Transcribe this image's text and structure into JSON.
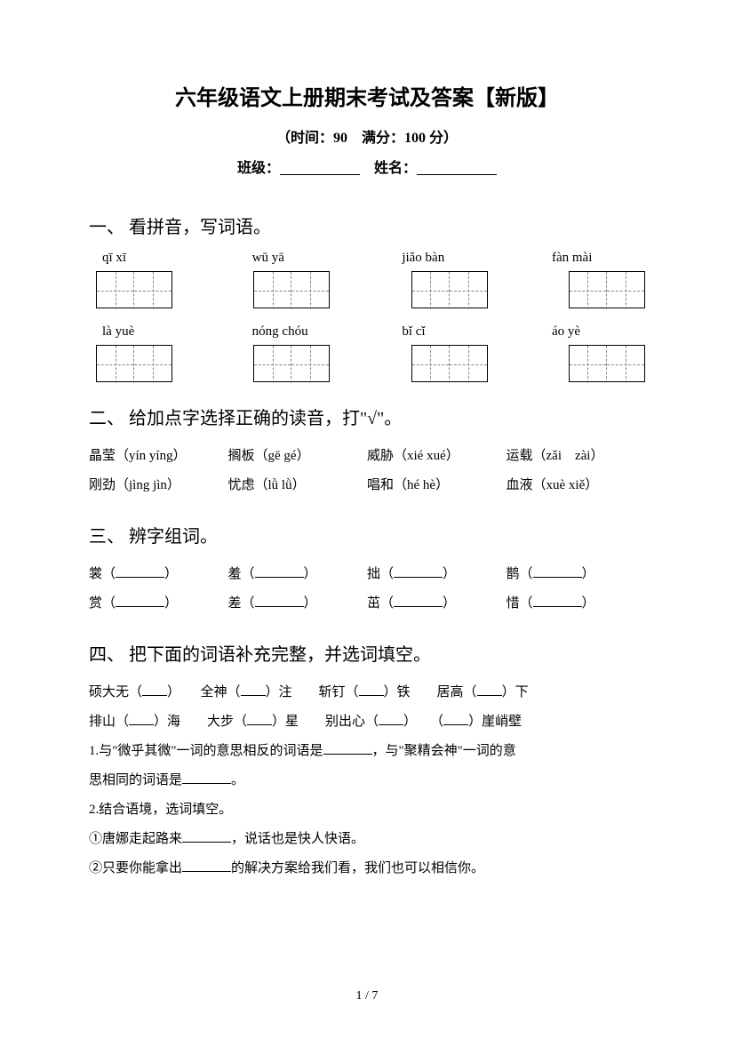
{
  "title": "六年级语文上册期末考试及答案【新版】",
  "subtitle": "（时间：90　满分：100 分）",
  "info": {
    "class_label": "班级：",
    "name_label": "姓名："
  },
  "sections": {
    "q1": {
      "header": "一、 看拼音，写词语。",
      "row1": [
        "qī xī",
        "wū yā",
        "jiǎo bàn",
        "fàn mài"
      ],
      "row2": [
        "là yuè",
        "nóng chóu",
        "bǐ cǐ",
        "áo yè"
      ]
    },
    "q2": {
      "header": "二、 给加点字选择正确的读音，打\"√\"。",
      "items": [
        [
          "晶莹（yín yíng）",
          "搁板（gē gé）",
          "威胁（xié xué）",
          "运载（zǎi　zài）"
        ],
        [
          "刚劲（jìng jìn）",
          "忧虑（lǜ lǜ）",
          "唱和（hé hè）",
          "血液（xuè xiě）"
        ]
      ]
    },
    "q3": {
      "header": "三、 辨字组词。",
      "rows": [
        [
          "裳（",
          "羞（",
          "拙（",
          "鹊（"
        ],
        [
          "赏（",
          "差（",
          "茁（",
          "惜（"
        ]
      ]
    },
    "q4": {
      "header": "四、 把下面的词语补充完整，并选词填空。",
      "line1": [
        "硕大无（",
        "）　　全神（",
        "）注　　斩钉（",
        "）铁　　居高（",
        "）下"
      ],
      "line2": [
        "排山（",
        "）海　　大步（",
        "）星　　别出心（",
        "）　　（",
        "）崖峭壁"
      ],
      "line3_a": "1.与\"微乎其微\"一词的意思相反的词语是",
      "line3_b": "，与\"聚精会神\"一词的意",
      "line4": "思相同的词语是",
      "line4_end": "。",
      "line5": "2.结合语境，选词填空。",
      "line6_a": "①唐娜走起路来",
      "line6_b": "，说话也是快人快语。",
      "line7_a": "②只要你能拿出",
      "line7_b": "的解决方案给我们看，我们也可以相信你。"
    }
  },
  "page": "1 / 7"
}
